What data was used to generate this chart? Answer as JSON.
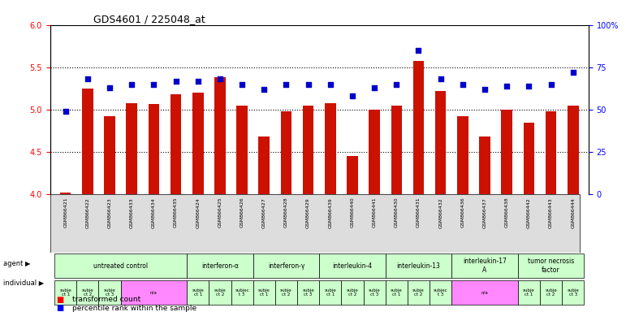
{
  "title": "GDS4601 / 225048_at",
  "samples": [
    "GSM866421",
    "GSM866422",
    "GSM866423",
    "GSM866433",
    "GSM866434",
    "GSM866435",
    "GSM866424",
    "GSM866425",
    "GSM866426",
    "GSM866427",
    "GSM866428",
    "GSM866429",
    "GSM866439",
    "GSM866440",
    "GSM866441",
    "GSM866430",
    "GSM866431",
    "GSM866432",
    "GSM866436",
    "GSM866437",
    "GSM866438",
    "GSM866442",
    "GSM866443",
    "GSM866444"
  ],
  "bar_values": [
    4.02,
    5.25,
    4.92,
    5.08,
    5.07,
    5.18,
    5.2,
    5.38,
    5.05,
    4.68,
    4.98,
    5.05,
    5.08,
    4.45,
    5.0,
    5.05,
    5.58,
    5.22,
    4.92,
    4.68,
    5.0,
    4.85,
    4.98,
    5.05
  ],
  "dot_values": [
    49,
    68,
    63,
    65,
    65,
    67,
    67,
    68,
    65,
    62,
    65,
    65,
    65,
    58,
    63,
    65,
    85,
    68,
    65,
    62,
    64,
    64,
    65,
    72
  ],
  "ylim_left": [
    4.0,
    6.0
  ],
  "ylim_right": [
    0,
    100
  ],
  "yticks_left": [
    4.0,
    4.5,
    5.0,
    5.5,
    6.0
  ],
  "yticks_right": [
    0,
    25,
    50,
    75,
    100
  ],
  "ytick_labels_right": [
    "0",
    "25",
    "50",
    "75",
    "100%"
  ],
  "hlines": [
    4.5,
    5.0,
    5.5
  ],
  "bar_color": "#CC1100",
  "dot_color": "#0000CC",
  "agent_groups": [
    {
      "label": "untreated control",
      "start": 0,
      "end": 5,
      "color": "#CCFFCC"
    },
    {
      "label": "interferon-α",
      "start": 6,
      "end": 8,
      "color": "#CCFFCC"
    },
    {
      "label": "interferon-γ",
      "start": 9,
      "end": 11,
      "color": "#CCFFCC"
    },
    {
      "label": "interleukin-4",
      "start": 12,
      "end": 14,
      "color": "#CCFFCC"
    },
    {
      "label": "interleukin-13",
      "start": 15,
      "end": 17,
      "color": "#CCFFCC"
    },
    {
      "label": "interleukin-17\nA",
      "start": 18,
      "end": 20,
      "color": "#CCFFCC"
    },
    {
      "label": "tumor necrosis\nfactor",
      "start": 21,
      "end": 23,
      "color": "#CCFFCC"
    }
  ],
  "individual_groups": [
    {
      "label": "subje\nct 1",
      "start": 0,
      "end": 0,
      "color": "#CCFFCC"
    },
    {
      "label": "subje\nct 2",
      "start": 1,
      "end": 1,
      "color": "#CCFFCC"
    },
    {
      "label": "subje\nct 3",
      "start": 2,
      "end": 2,
      "color": "#CCFFCC"
    },
    {
      "label": "n/a",
      "start": 3,
      "end": 5,
      "color": "#FF88FF"
    },
    {
      "label": "subje\nct 1",
      "start": 6,
      "end": 6,
      "color": "#CCFFCC"
    },
    {
      "label": "subje\nct 2",
      "start": 7,
      "end": 7,
      "color": "#CCFFCC"
    },
    {
      "label": "subjec\nt 3",
      "start": 8,
      "end": 8,
      "color": "#CCFFCC"
    },
    {
      "label": "subje\nct 1",
      "start": 9,
      "end": 9,
      "color": "#CCFFCC"
    },
    {
      "label": "subje\nct 2",
      "start": 10,
      "end": 10,
      "color": "#CCFFCC"
    },
    {
      "label": "subje\nct 3",
      "start": 11,
      "end": 11,
      "color": "#CCFFCC"
    },
    {
      "label": "subje\nct 1",
      "start": 12,
      "end": 12,
      "color": "#CCFFCC"
    },
    {
      "label": "subje\nct 2",
      "start": 13,
      "end": 13,
      "color": "#CCFFCC"
    },
    {
      "label": "subje\nct 3",
      "start": 14,
      "end": 14,
      "color": "#CCFFCC"
    },
    {
      "label": "subje\nct 1",
      "start": 15,
      "end": 15,
      "color": "#CCFFCC"
    },
    {
      "label": "subje\nct 2",
      "start": 16,
      "end": 16,
      "color": "#CCFFCC"
    },
    {
      "label": "subjec\nt 3",
      "start": 17,
      "end": 17,
      "color": "#CCFFCC"
    },
    {
      "label": "n/a",
      "start": 18,
      "end": 20,
      "color": "#FF88FF"
    },
    {
      "label": "subje\nct 1",
      "start": 21,
      "end": 21,
      "color": "#CCFFCC"
    },
    {
      "label": "subje\nct 2",
      "start": 22,
      "end": 22,
      "color": "#CCFFCC"
    },
    {
      "label": "subje\nct 3",
      "start": 23,
      "end": 23,
      "color": "#CCFFCC"
    }
  ],
  "legend_items": [
    {
      "label": "transformed count",
      "color": "#CC1100",
      "marker": "s"
    },
    {
      "label": "percentile rank within the sample",
      "color": "#0000CC",
      "marker": "s"
    }
  ]
}
